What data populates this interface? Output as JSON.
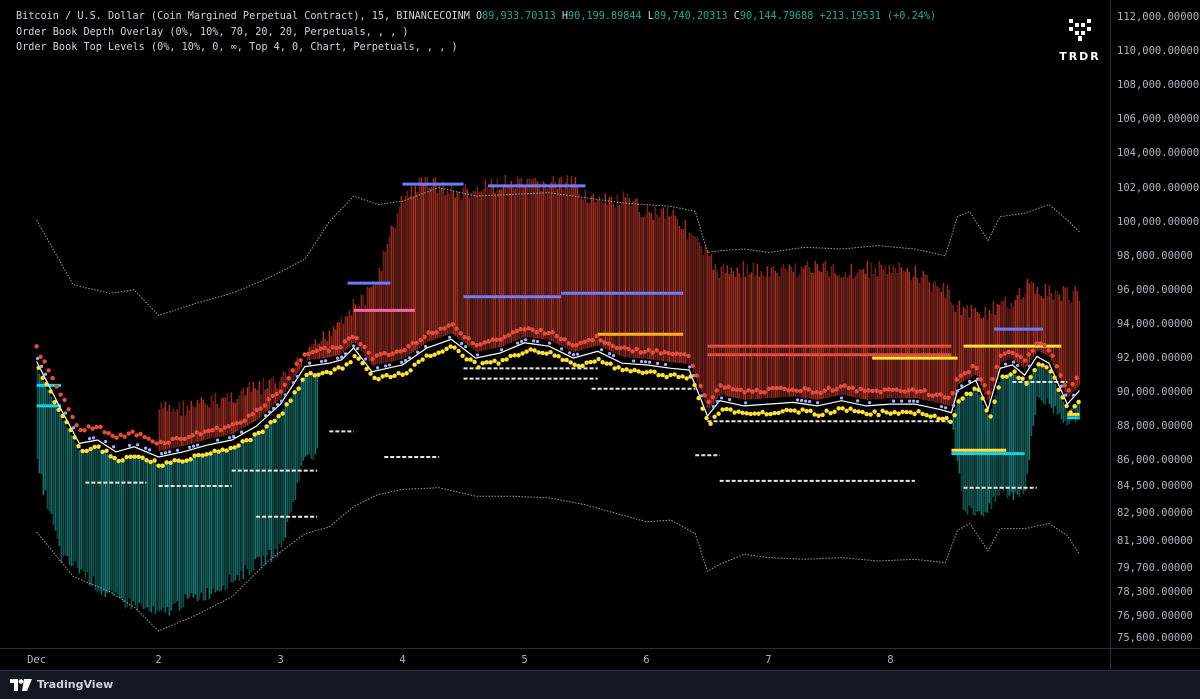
{
  "header": {
    "symbol": "Bitcoin / U.S. Dollar (Coin Margined Perpetual Contract), 15, BINANCECOINM",
    "ohlc": {
      "o_label": "O",
      "o": "89,933.70313",
      "h_label": "H",
      "h": "90,199.89844",
      "l_label": "L",
      "l": "89,740.20313",
      "c_label": "C",
      "c": "90,144.79688",
      "change": "+213.19531 (+0.24%)"
    },
    "indicators": [
      "Order Book Depth Overlay (0%, 10%, 70, 20, 20, Perpetuals, , , )",
      "Order Book Top Levels (0%, 10%, 0, ∞, Top 4, 0, Chart, Perpetuals, , , )"
    ]
  },
  "watermark": {
    "brand": "TRDR"
  },
  "footer": {
    "brand": "TradingView"
  },
  "colors": {
    "ask_depth": "#c0392b",
    "bid_depth": "#1f8a85",
    "price_line": "#ffffff",
    "ask_levels": "#e24d3d",
    "bid_levels": "#ffe03a",
    "blue_levels": "#6d7cff",
    "cyan_levels": "#1ad1e5",
    "pink_levels": "#f06aa0",
    "axis_text": "#b2b5be"
  },
  "chart_data": {
    "type": "line",
    "title": "",
    "x_ticks": [
      "Dec",
      "2",
      "3",
      "4",
      "5",
      "6",
      "7",
      "8"
    ],
    "y_ticks": [
      112000,
      110000,
      108000,
      106000,
      104000,
      102000,
      100000,
      98000,
      96000,
      94000,
      92000,
      90000,
      88000,
      86000,
      84500,
      82900,
      81300,
      79700,
      78300,
      76900,
      75600
    ],
    "y_tick_labels": [
      "112,000.00000",
      "110,000.00000",
      "108,000.00000",
      "106,000.00000",
      "104,000.00000",
      "102,000.00000",
      "100,000.00000",
      "98,000.00000",
      "96,000.00000",
      "94,000.00000",
      "92,000.00000",
      "90,000.00000",
      "88,000.00000",
      "86,000.00000",
      "84,500.00000",
      "82,900.00000",
      "81,300.00000",
      "79,700.00000",
      "78,300.00000",
      "76,900.00000",
      "75,600.00000"
    ],
    "price_series": {
      "name": "",
      "x": [
        0,
        0.2,
        0.35,
        0.5,
        0.65,
        0.8,
        1.0,
        1.2,
        1.4,
        1.6,
        1.8,
        2.0,
        2.2,
        2.4,
        2.5,
        2.6,
        2.75,
        3.0,
        3.2,
        3.4,
        3.6,
        3.8,
        4.0,
        4.2,
        4.4,
        4.6,
        4.8,
        5.0,
        5.2,
        5.35,
        5.5,
        5.6,
        5.8,
        6.0,
        6.2,
        6.4,
        6.6,
        6.8,
        7.0,
        7.2,
        7.4,
        7.5,
        7.55,
        7.7,
        7.8,
        7.9,
        8.0,
        8.1,
        8.2,
        8.3,
        8.45,
        8.55
      ],
      "y": [
        91800,
        89000,
        87000,
        87200,
        86500,
        86800,
        86200,
        86500,
        86900,
        87200,
        88000,
        89300,
        91500,
        91700,
        91900,
        92600,
        91200,
        91600,
        92600,
        93100,
        92000,
        92300,
        92900,
        92700,
        92000,
        92400,
        91700,
        91600,
        91400,
        91300,
        88600,
        89500,
        89200,
        89300,
        89400,
        89200,
        89500,
        89200,
        89300,
        89300,
        89000,
        88800,
        90100,
        90700,
        89000,
        91400,
        91600,
        91000,
        92100,
        91700,
        89300,
        90100
      ]
    },
    "upper_band": {
      "name": "",
      "x": [
        0,
        0.3,
        0.6,
        0.8,
        1.0,
        1.3,
        1.6,
        1.9,
        2.2,
        2.4,
        2.6,
        2.8,
        3.0,
        3.3,
        3.6,
        3.9,
        4.2,
        4.5,
        4.8,
        5.0,
        5.2,
        5.4,
        5.5,
        5.6,
        5.8,
        6.0,
        6.3,
        6.6,
        6.9,
        7.2,
        7.45,
        7.55,
        7.65,
        7.8,
        7.9,
        8.1,
        8.3,
        8.45,
        8.55
      ],
      "y": [
        100100,
        96300,
        95800,
        96000,
        94500,
        95200,
        95800,
        96700,
        97800,
        100000,
        101500,
        101000,
        101200,
        102000,
        101500,
        101600,
        101700,
        101400,
        101100,
        101000,
        100900,
        100600,
        98200,
        98300,
        98400,
        98200,
        98500,
        98400,
        98600,
        98400,
        98000,
        100300,
        100600,
        98900,
        100300,
        100500,
        101000,
        100100,
        99400
      ]
    },
    "lower_band": {
      "name": "",
      "x": [
        0,
        0.3,
        0.6,
        0.8,
        1.0,
        1.3,
        1.6,
        1.9,
        2.2,
        2.4,
        2.6,
        2.8,
        3.0,
        3.3,
        3.6,
        3.9,
        4.2,
        4.5,
        4.8,
        5.0,
        5.2,
        5.4,
        5.5,
        5.6,
        5.8,
        6.0,
        6.3,
        6.6,
        6.9,
        7.2,
        7.45,
        7.55,
        7.65,
        7.8,
        7.9,
        8.1,
        8.3,
        8.45,
        8.55
      ],
      "y": [
        81800,
        79200,
        78300,
        77400,
        76000,
        76900,
        78000,
        80100,
        81700,
        82100,
        83300,
        84000,
        84300,
        84400,
        83900,
        83900,
        83800,
        83400,
        82800,
        82400,
        82500,
        81700,
        79500,
        79900,
        80500,
        80300,
        80200,
        80300,
        80100,
        80200,
        80000,
        81900,
        82300,
        80700,
        82000,
        82000,
        82300,
        81600,
        80500
      ]
    },
    "ask_depth_top": {
      "name": "",
      "x": [
        1.0,
        1.3,
        1.6,
        2.0,
        2.2,
        2.5,
        2.75,
        3.0,
        3.2,
        3.4,
        3.6,
        3.8,
        4.0,
        4.2,
        4.4,
        4.6,
        4.8,
        5.0,
        5.2,
        5.35,
        5.5,
        5.6,
        5.8,
        6.0,
        6.3,
        6.6,
        6.9,
        7.2,
        7.45,
        7.55,
        7.7,
        7.9,
        8.1,
        8.3,
        8.55
      ],
      "y": [
        89500,
        89700,
        90300,
        91200,
        92500,
        95000,
        96500,
        102000,
        103000,
        102200,
        102300,
        102800,
        102600,
        102800,
        102700,
        101600,
        101800,
        101100,
        101200,
        99800,
        98400,
        97600,
        97800,
        97500,
        97900,
        97600,
        97800,
        97500,
        96400,
        95500,
        95200,
        95400,
        96700,
        96400,
        96200
      ]
    },
    "bid_depth_bottom": {
      "name": "",
      "x": [
        0,
        0.2,
        0.35,
        0.5,
        0.65,
        0.8,
        1.0,
        1.2,
        1.4,
        1.6,
        1.8,
        2.0,
        2.2,
        2.9,
        3.0,
        7.5,
        7.6,
        7.8,
        7.9,
        8.0,
        8.1,
        8.2,
        8.45,
        8.55
      ],
      "y": [
        85300,
        79800,
        79200,
        78100,
        77400,
        77100,
        76500,
        77300,
        77800,
        78600,
        79500,
        80400,
        86000,
        86000,
        90300,
        88000,
        82600,
        82600,
        83800,
        83500,
        84000,
        89400,
        87900,
        88400
      ]
    },
    "level_segments": [
      {
        "color": "blue",
        "x0": 3.0,
        "x1": 3.5,
        "y": 102200
      },
      {
        "color": "blue",
        "x0": 3.7,
        "x1": 4.5,
        "y": 102100
      },
      {
        "color": "blue",
        "x0": 2.55,
        "x1": 2.9,
        "y": 96400
      },
      {
        "color": "blue",
        "x0": 3.5,
        "x1": 4.3,
        "y": 95600
      },
      {
        "color": "blue",
        "x0": 4.3,
        "x1": 5.3,
        "y": 95800
      },
      {
        "color": "blue",
        "x0": 7.85,
        "x1": 8.25,
        "y": 93700
      },
      {
        "color": "pink",
        "x0": 2.6,
        "x1": 3.1,
        "y": 94800
      },
      {
        "color": "orange",
        "x0": 4.6,
        "x1": 5.3,
        "y": 93400
      },
      {
        "color": "red",
        "x0": 5.5,
        "x1": 7.5,
        "y": 92700
      },
      {
        "color": "red",
        "x0": 5.5,
        "x1": 7.5,
        "y": 92200
      },
      {
        "color": "yellow",
        "x0": 6.85,
        "x1": 7.55,
        "y": 92000
      },
      {
        "color": "yellow",
        "x0": 7.6,
        "x1": 8.4,
        "y": 92700
      },
      {
        "color": "white",
        "x0": 3.5,
        "x1": 4.6,
        "y": 91400
      },
      {
        "color": "white",
        "x0": 3.5,
        "x1": 4.6,
        "y": 90800
      },
      {
        "color": "white",
        "x0": 4.55,
        "x1": 5.4,
        "y": 90200
      },
      {
        "color": "white",
        "x0": 5.5,
        "x1": 7.5,
        "y": 88300
      },
      {
        "color": "white",
        "x0": 8.0,
        "x1": 8.45,
        "y": 90600
      },
      {
        "color": "white",
        "x0": 0.4,
        "x1": 0.9,
        "y": 84700
      },
      {
        "color": "white",
        "x0": 1.0,
        "x1": 1.6,
        "y": 84500
      },
      {
        "color": "white",
        "x0": 1.6,
        "x1": 2.3,
        "y": 85400
      },
      {
        "color": "white",
        "x0": 1.8,
        "x1": 2.3,
        "y": 82700
      },
      {
        "color": "white",
        "x0": 2.85,
        "x1": 3.3,
        "y": 86200
      },
      {
        "color": "white",
        "x0": 2.4,
        "x1": 2.6,
        "y": 87700
      },
      {
        "color": "white",
        "x0": 5.6,
        "x1": 7.2,
        "y": 84800
      },
      {
        "color": "white",
        "x0": 7.6,
        "x1": 8.2,
        "y": 84400
      },
      {
        "color": "white",
        "x0": 5.4,
        "x1": 5.6,
        "y": 86300
      },
      {
        "color": "cyan",
        "x0": 0.0,
        "x1": 0.2,
        "y": 90400
      },
      {
        "color": "cyan",
        "x0": 0.0,
        "x1": 0.2,
        "y": 89200
      },
      {
        "color": "cyan",
        "x0": 7.5,
        "x1": 8.1,
        "y": 86400
      },
      {
        "color": "cyan",
        "x0": 8.45,
        "x1": 8.55,
        "y": 88500
      },
      {
        "color": "yellow",
        "x0": 7.5,
        "x1": 7.95,
        "y": 86600
      },
      {
        "color": "yellow",
        "x0": 8.45,
        "x1": 8.55,
        "y": 88700
      }
    ],
    "ylim": [
      75000,
      113000
    ],
    "xlim": [
      -0.3,
      8.8
    ],
    "grid": false
  }
}
